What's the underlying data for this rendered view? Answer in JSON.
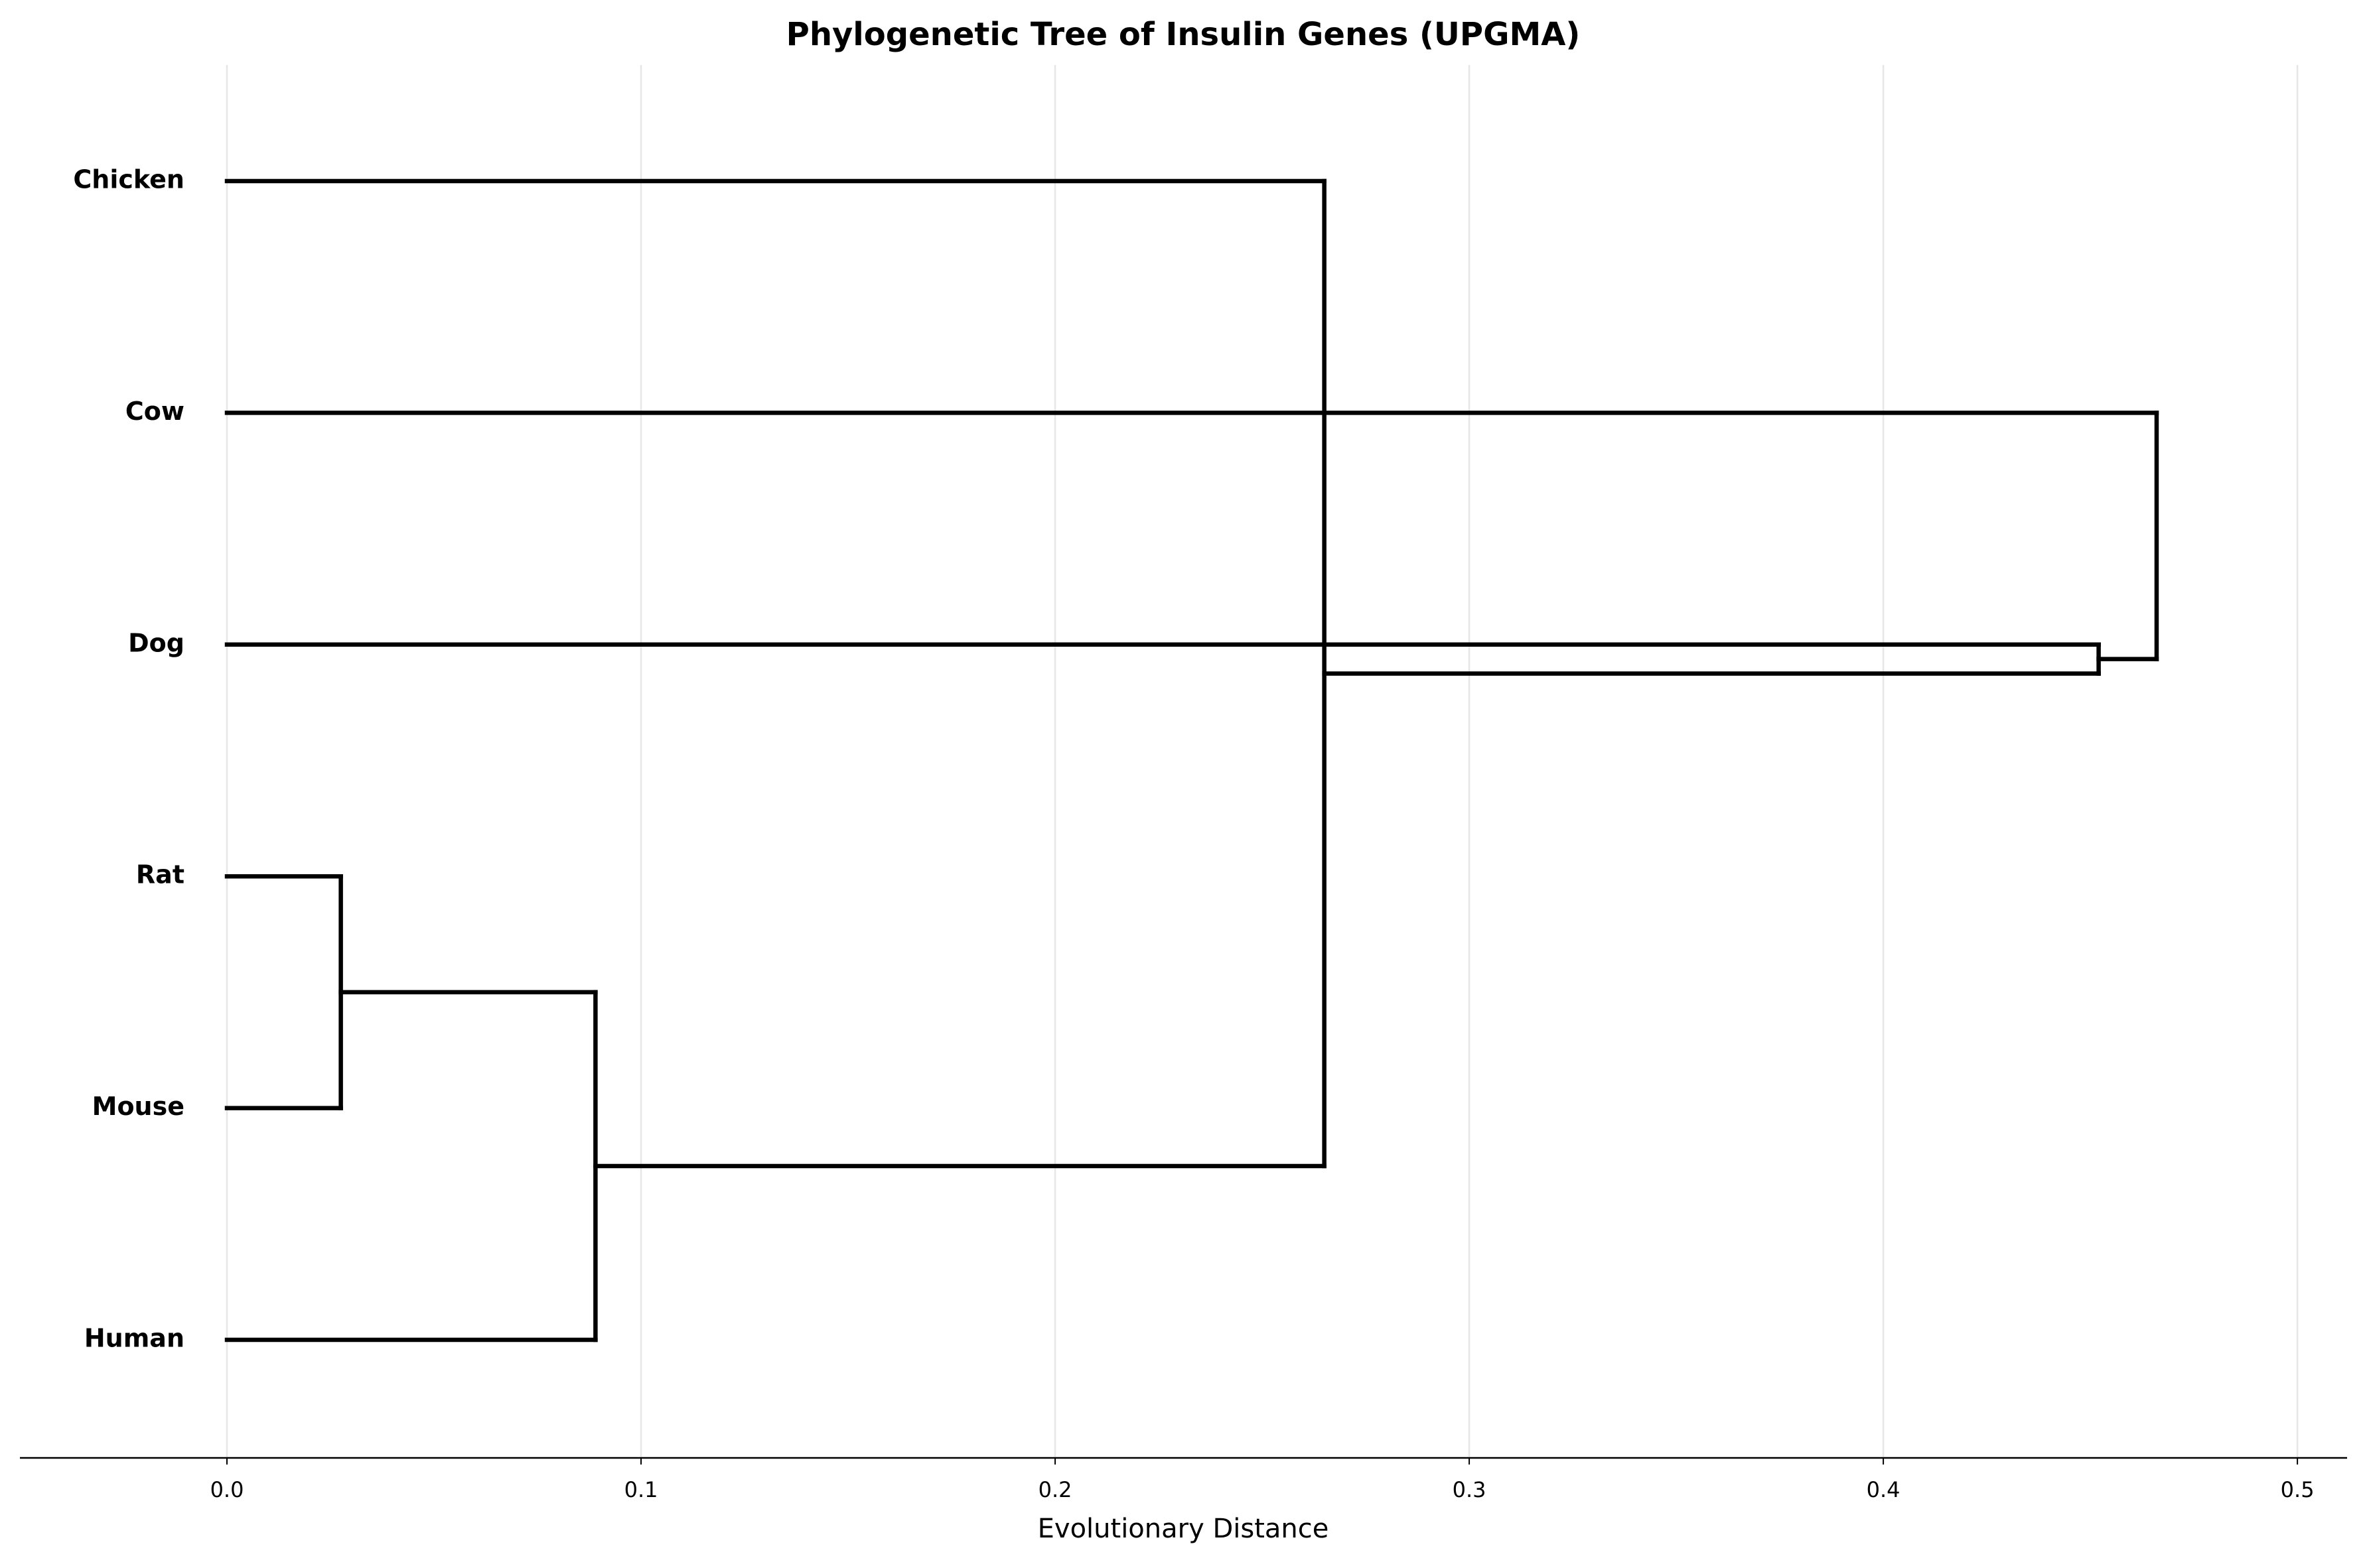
{
  "chart_data": {
    "type": "dendrogram",
    "title": "Phylogenetic Tree of Insulin Genes (UPGMA)",
    "x_label": "Evolutionary Distance",
    "leaves": [
      "Chicken",
      "Cow",
      "Dog",
      "Rat",
      "Mouse",
      "Human"
    ],
    "links": [
      {
        "children": [
          3,
          4
        ],
        "height": 0.0275
      },
      {
        "children": [
          6,
          5
        ],
        "height": 0.089
      },
      {
        "children": [
          0,
          7
        ],
        "height": 0.265
      },
      {
        "children": [
          2,
          8
        ],
        "height": 0.452
      },
      {
        "children": [
          1,
          9
        ],
        "height": 0.466
      }
    ],
    "color": "#000000",
    "xlim": [
      -0.05,
      0.512
    ],
    "xticks": [
      {
        "value": 0,
        "label": "0.0"
      },
      0.1,
      0.2,
      0.3,
      0.4,
      0.5
    ],
    "grid": true
  }
}
